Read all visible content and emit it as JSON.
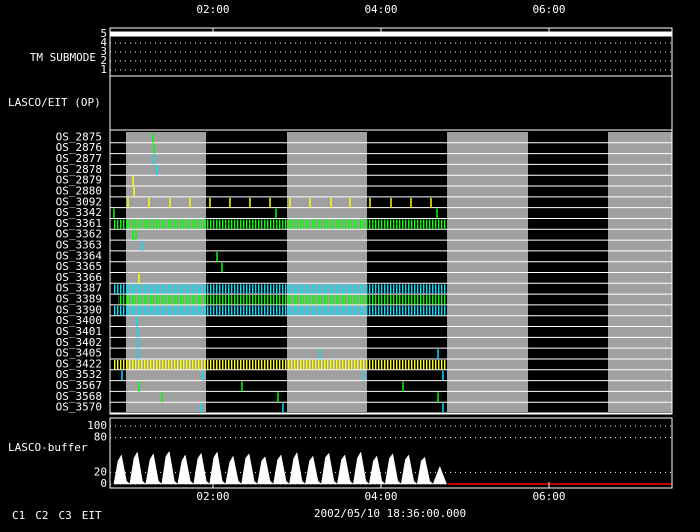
{
  "chart_data": [
    {
      "type": "line",
      "ylabel": "TM SUBMODE",
      "xlim": [
        0.774,
        7.464
      ],
      "xticks": [
        {
          "value": 2,
          "label": "02:00"
        },
        {
          "value": 4,
          "label": "04:00"
        },
        {
          "value": 6,
          "label": "06:00"
        }
      ],
      "ylim": [
        0.5,
        5.5
      ],
      "yticks": [
        1,
        2,
        3,
        4,
        5
      ],
      "grid": "dotted",
      "series": [
        {
          "color": "#ffffff",
          "x": [
            0.774,
            7.464
          ],
          "values": [
            5,
            5
          ]
        }
      ]
    },
    {
      "type": "blank",
      "ylabel": "LASCO/EIT (OP)",
      "xlim": [
        0.774,
        7.464
      ]
    },
    {
      "type": "timeline",
      "xlim": [
        0.774,
        7.464
      ],
      "shaded": [
        [
          0.964,
          1.917
        ],
        [
          2.881,
          3.833
        ],
        [
          4.786,
          5.75
        ],
        [
          6.702,
          7.464
        ]
      ],
      "shade_color": "#a0a0a0",
      "rows": [
        {
          "name": "OS_2875",
          "events": [
            {
              "color": "#00ff00",
              "x": [
                1.286
              ]
            }
          ]
        },
        {
          "name": "OS_2876",
          "events": [
            {
              "color": "#00ff00",
              "x": [
                1.298
              ]
            }
          ]
        },
        {
          "name": "OS_2877",
          "events": [
            {
              "color": "#00e0ff",
              "x": [
                1.298
              ]
            }
          ]
        },
        {
          "name": "OS_2878",
          "events": [
            {
              "color": "#00e0ff",
              "x": [
                1.333
              ]
            }
          ]
        },
        {
          "name": "OS_2879",
          "events": [
            {
              "color": "#ffff00",
              "x": [
                1.048
              ]
            }
          ]
        },
        {
          "name": "OS_2880",
          "events": [
            {
              "color": "#ffff00",
              "x": [
                1.06
              ]
            }
          ]
        },
        {
          "name": "OS_3092",
          "events": [
            {
              "color": "#ffff00",
              "x": [
                0.988,
                1.238,
                1.488,
                1.726,
                1.964,
                2.202,
                2.44,
                2.679,
                2.917,
                3.155,
                3.405,
                3.631,
                3.869,
                4.119,
                4.357,
                4.595
              ]
            }
          ]
        },
        {
          "name": "OS_3342",
          "events": [
            {
              "color": "#00ff00",
              "x": [
                0.821,
                2.75,
                4.667
              ]
            }
          ]
        },
        {
          "name": "OS_3361",
          "bursts": [
            {
              "color": "#00ff00",
              "interval": [
                0.81,
                4.786
              ]
            }
          ]
        },
        {
          "name": "OS_3362",
          "events": [
            {
              "color": "#00ff00",
              "x": [
                1.048,
                1.083
              ]
            }
          ]
        },
        {
          "name": "OS_3363",
          "events": [
            {
              "color": "#00e0ff",
              "x": [
                1.155
              ]
            }
          ]
        },
        {
          "name": "OS_3364",
          "events": [
            {
              "color": "#00ff00",
              "x": [
                2.048
              ]
            }
          ]
        },
        {
          "name": "OS_3365",
          "events": [
            {
              "color": "#00ff00",
              "x": [
                2.107
              ]
            }
          ]
        },
        {
          "name": "OS_3366",
          "events": [
            {
              "color": "#ffff00",
              "x": [
                1.119
              ]
            }
          ]
        },
        {
          "name": "OS_3387",
          "bursts": [
            {
              "color": "#00e0ff",
              "interval": [
                0.81,
                4.786
              ]
            }
          ]
        },
        {
          "name": "OS_3389",
          "bursts": [
            {
              "color": "#00ff00",
              "interval": [
                0.869,
                4.786
              ]
            }
          ]
        },
        {
          "name": "OS_3390",
          "bursts": [
            {
              "color": "#00e0ff",
              "interval": [
                0.81,
                4.786
              ]
            }
          ]
        },
        {
          "name": "OS_3400",
          "events": [
            {
              "color": "#00e0ff",
              "x": [
                1.095
              ]
            }
          ]
        },
        {
          "name": "OS_3401",
          "events": [
            {
              "color": "#00e0ff",
              "x": [
                1.107
              ]
            }
          ]
        },
        {
          "name": "OS_3402",
          "events": [
            {
              "color": "#00e0ff",
              "x": [
                1.107
              ]
            }
          ]
        },
        {
          "name": "OS_3405",
          "events": [
            {
              "color": "#00e0ff",
              "x": [
                1.107,
                3.274,
                4.679
              ]
            }
          ]
        },
        {
          "name": "OS_3422",
          "bursts": [
            {
              "color": "#ffff00",
              "interval": [
                0.81,
                4.786
              ]
            }
          ]
        },
        {
          "name": "OS_3532",
          "events": [
            {
              "color": "#00e0ff",
              "x": [
                0.917,
                1.881,
                3.798,
                4.738
              ]
            }
          ]
        },
        {
          "name": "OS_3567",
          "events": [
            {
              "color": "#00ff00",
              "x": [
                1.119,
                2.345,
                4.262
              ]
            }
          ]
        },
        {
          "name": "OS_3568",
          "events": [
            {
              "color": "#00ff00",
              "x": [
                1.393,
                2.774,
                4.679
              ]
            }
          ]
        },
        {
          "name": "OS_3570",
          "events": [
            {
              "color": "#00e0ff",
              "x": [
                1.857,
                2.833,
                4.738
              ]
            }
          ]
        }
      ]
    },
    {
      "type": "area",
      "ylabel": "LASCO-buffer",
      "xlim": [
        0.774,
        7.464
      ],
      "xticks": [
        {
          "value": 2,
          "label": "02:00"
        },
        {
          "value": 4,
          "label": "04:00"
        },
        {
          "value": 6,
          "label": "06:00"
        }
      ],
      "ylim": [
        0,
        100
      ],
      "yticks": [
        0,
        20,
        80,
        100
      ],
      "grid": "dotted",
      "series": [
        {
          "color": "#ffffff",
          "fill": true,
          "x": [
            0.82,
            0.87,
            0.91,
            0.97,
            1.01,
            1.06,
            1.1,
            1.16,
            1.2,
            1.25,
            1.29,
            1.35,
            1.39,
            1.44,
            1.48,
            1.54,
            1.58,
            1.63,
            1.67,
            1.73,
            1.77,
            1.82,
            1.86,
            1.92,
            1.96,
            2.01,
            2.05,
            2.11,
            2.15,
            2.2,
            2.24,
            2.3,
            2.34,
            2.39,
            2.43,
            2.49,
            2.53,
            2.58,
            2.62,
            2.68,
            2.72,
            2.77,
            2.81,
            2.87,
            2.91,
            2.96,
            3.0,
            3.06,
            3.1,
            3.15,
            3.19,
            3.25,
            3.29,
            3.34,
            3.38,
            3.44,
            3.48,
            3.53,
            3.57,
            3.63,
            3.67,
            3.72,
            3.76,
            3.82,
            3.86,
            3.91,
            3.95,
            4.01,
            4.05,
            4.1,
            4.14,
            4.2,
            4.24,
            4.29,
            4.33,
            4.39,
            4.43,
            4.48,
            4.52,
            4.58,
            4.62,
            4.7,
            4.78
          ],
          "values": [
            0,
            40,
            50,
            5,
            0,
            45,
            55,
            5,
            0,
            42,
            52,
            5,
            0,
            48,
            56,
            5,
            0,
            40,
            50,
            5,
            0,
            44,
            53,
            5,
            0,
            46,
            55,
            5,
            0,
            38,
            48,
            5,
            0,
            45,
            52,
            5,
            0,
            40,
            47,
            5,
            0,
            42,
            50,
            5,
            0,
            44,
            54,
            5,
            0,
            40,
            48,
            5,
            0,
            46,
            53,
            5,
            0,
            42,
            50,
            5,
            0,
            45,
            55,
            5,
            0,
            40,
            48,
            5,
            0,
            44,
            52,
            5,
            0,
            42,
            50,
            5,
            0,
            40,
            46,
            5,
            0,
            30,
            0
          ]
        },
        {
          "color": "#ff0000",
          "x": [
            4.79,
            7.464
          ],
          "values": [
            0,
            0
          ]
        }
      ]
    }
  ],
  "footer": {
    "timestamp": "2002/05/10 18:36:00.000",
    "legend": [
      {
        "name": "C1",
        "color": "#ff0000"
      },
      {
        "name": "C2",
        "color": "#00ff00"
      },
      {
        "name": "C3",
        "color": "#00e0ff"
      },
      {
        "name": "EIT",
        "color": "#ffffff"
      }
    ]
  }
}
